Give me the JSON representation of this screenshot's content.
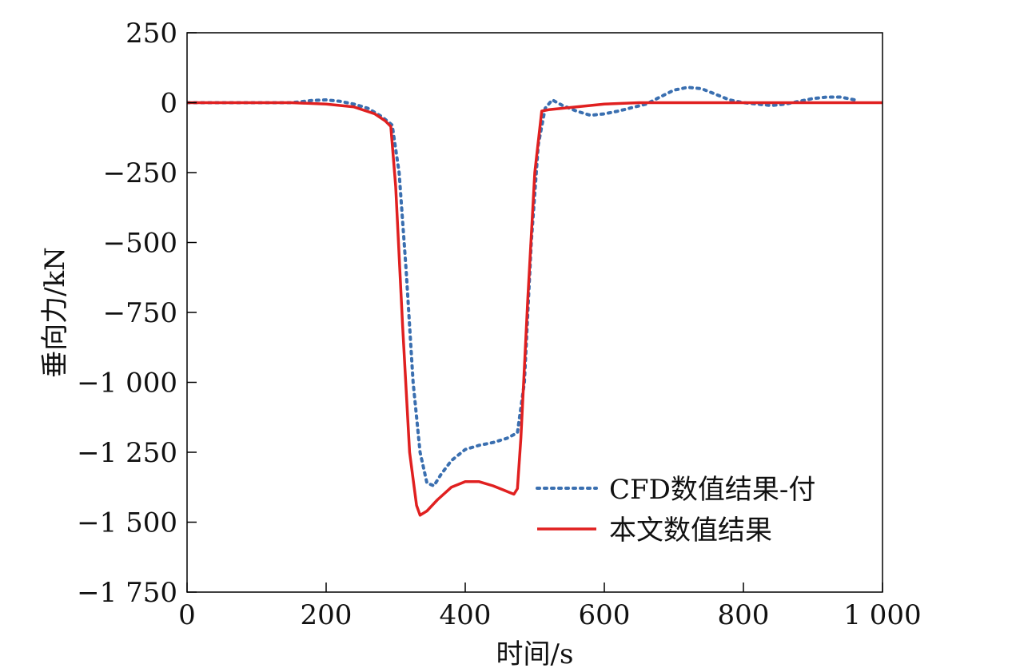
{
  "chart_data": {
    "type": "line",
    "title": "",
    "xlabel": "时间/s",
    "ylabel": "垂向力/kN",
    "xlim": [
      0,
      1000
    ],
    "ylim": [
      -1750,
      250
    ],
    "xticks": [
      0,
      200,
      400,
      600,
      800,
      1000
    ],
    "xtick_labels": [
      "0",
      "200",
      "400",
      "600",
      "800",
      "1 000"
    ],
    "yticks": [
      250,
      0,
      -250,
      -500,
      -750,
      -1000,
      -1250,
      -1500,
      -1750
    ],
    "ytick_labels": [
      "250",
      "0",
      "−250",
      "−500",
      "−750",
      "−1 000",
      "−1 250",
      "−1 500",
      "−1 750"
    ],
    "grid": false,
    "legend_position": "bottom-right",
    "series": [
      {
        "name": "CFD数值结果-付",
        "style": "dotted",
        "color": "#3a6fb0",
        "x": [
          0,
          150,
          180,
          200,
          220,
          240,
          260,
          280,
          295,
          305,
          315,
          325,
          335,
          345,
          355,
          365,
          380,
          400,
          420,
          440,
          460,
          475,
          485,
          495,
          505,
          515,
          525,
          540,
          560,
          580,
          600,
          620,
          660,
          680,
          700,
          720,
          740,
          760,
          780,
          800,
          820,
          840,
          860,
          880,
          900,
          920,
          940,
          960
        ],
        "y": [
          0,
          0,
          8,
          10,
          5,
          -5,
          -20,
          -50,
          -80,
          -250,
          -600,
          -1000,
          -1250,
          -1360,
          -1370,
          -1330,
          -1280,
          -1240,
          -1225,
          -1215,
          -1200,
          -1180,
          -1000,
          -500,
          -150,
          -20,
          10,
          -10,
          -30,
          -45,
          -40,
          -30,
          -5,
          20,
          45,
          55,
          50,
          30,
          10,
          0,
          -5,
          -10,
          -5,
          5,
          15,
          20,
          20,
          10
        ]
      },
      {
        "name": "本文数值结果",
        "style": "solid",
        "color": "#e02020",
        "x": [
          0,
          150,
          200,
          240,
          270,
          285,
          293,
          300,
          310,
          320,
          330,
          335,
          345,
          360,
          380,
          400,
          420,
          440,
          455,
          465,
          470,
          475,
          480,
          490,
          500,
          510,
          520,
          560,
          600,
          650,
          700,
          800,
          1000
        ],
        "y": [
          0,
          0,
          -5,
          -15,
          -40,
          -65,
          -85,
          -300,
          -800,
          -1250,
          -1440,
          -1475,
          -1460,
          -1420,
          -1375,
          -1355,
          -1355,
          -1370,
          -1385,
          -1395,
          -1400,
          -1380,
          -1200,
          -700,
          -250,
          -30,
          -25,
          -15,
          -5,
          0,
          0,
          0,
          0
        ]
      }
    ]
  }
}
